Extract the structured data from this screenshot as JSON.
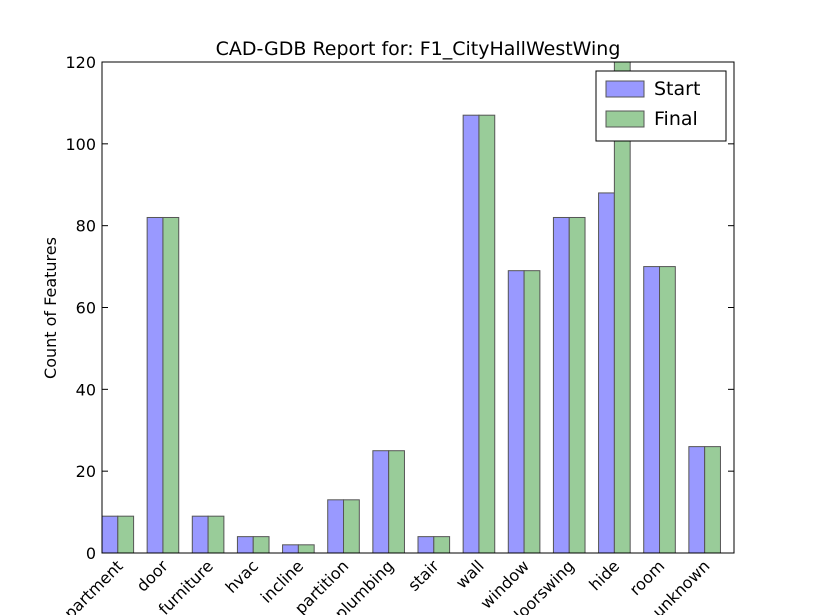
{
  "chart_data": {
    "type": "bar",
    "title": "CAD-GDB Report for: F1_CityHallWestWing",
    "ylabel": "Count of Features",
    "categories": [
      "apartment",
      "door",
      "furniture",
      "hvac",
      "incline",
      "partition",
      "plumbing",
      "stair",
      "wall",
      "window",
      "doorswing",
      "hide",
      "room",
      "unknown"
    ],
    "series": [
      {
        "name": "Start",
        "color": "#9999ff",
        "values": [
          9,
          82,
          9,
          4,
          2,
          13,
          25,
          4,
          107,
          69,
          82,
          88,
          70,
          26
        ]
      },
      {
        "name": "Final",
        "color": "#99cc99",
        "values": [
          9,
          82,
          9,
          4,
          2,
          13,
          25,
          4,
          107,
          69,
          82,
          130,
          70,
          26
        ]
      }
    ],
    "ylim": [
      0,
      120
    ],
    "yticks": [
      0,
      20,
      40,
      60,
      80,
      100,
      120
    ],
    "legend": "upper right"
  }
}
